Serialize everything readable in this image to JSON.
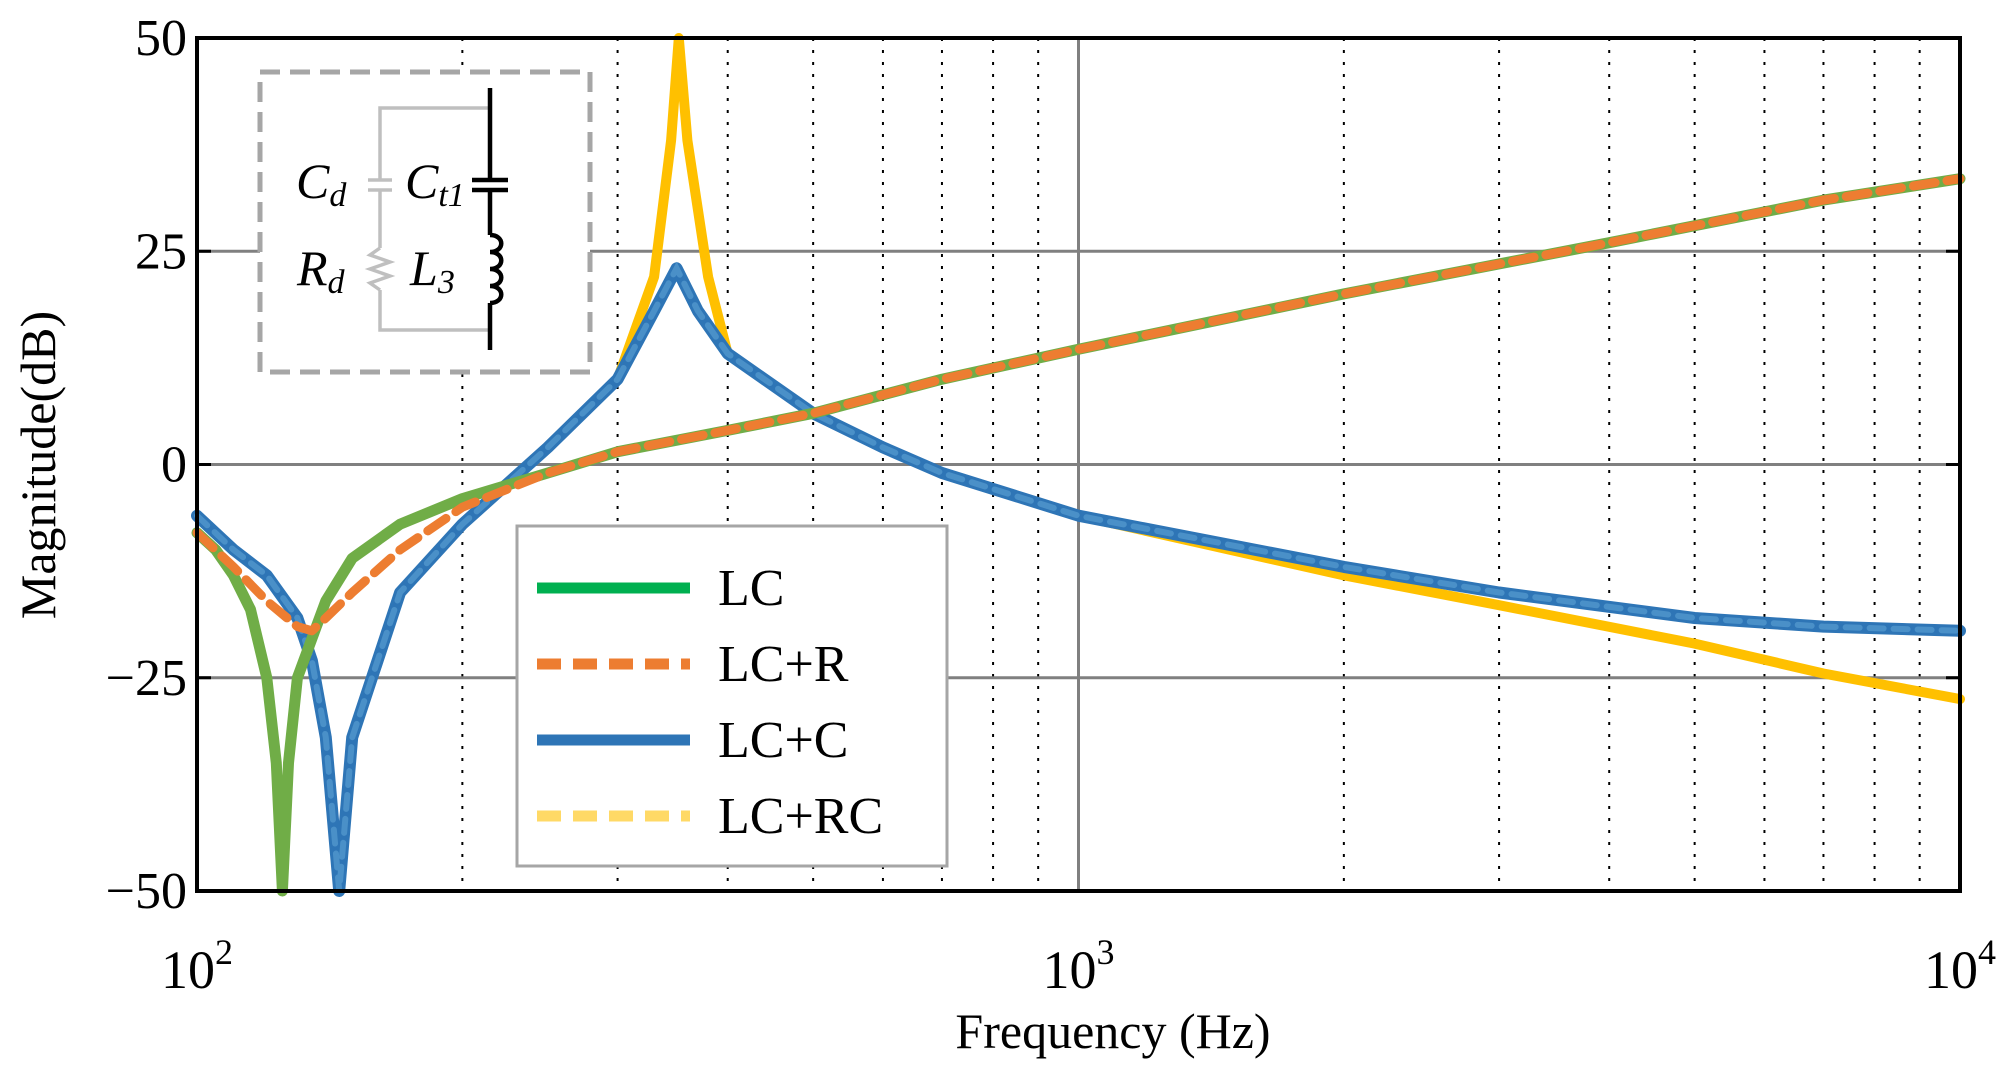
{
  "chart_data": {
    "type": "line",
    "title": "",
    "xlabel": "Frequency  (Hz)",
    "ylabel": "Magnitude(dB)",
    "xscale": "log",
    "xlim": [
      100,
      10000
    ],
    "ylim": [
      -50,
      50
    ],
    "xticks": [
      {
        "value": 100,
        "base": "10",
        "exp": "2"
      },
      {
        "value": 1000,
        "base": "10",
        "exp": "3"
      },
      {
        "value": 10000,
        "base": "10",
        "exp": "4"
      }
    ],
    "yticks": [
      {
        "value": 50,
        "label": "50"
      },
      {
        "value": 25,
        "label": "25"
      },
      {
        "value": 0,
        "label": "0"
      },
      {
        "value": -25,
        "label": "−25"
      },
      {
        "value": -50,
        "label": "−50"
      }
    ],
    "grid": true,
    "legend_position": "bottom-center",
    "series": [
      {
        "name": "LC",
        "color": "#70ad47",
        "style": "solid",
        "points": [
          [
            100,
            -8
          ],
          [
            105,
            -10
          ],
          [
            110,
            -13
          ],
          [
            115,
            -17
          ],
          [
            120,
            -25
          ],
          [
            123,
            -35
          ],
          [
            125,
            -50
          ],
          [
            127,
            -35
          ],
          [
            130,
            -25
          ],
          [
            140,
            -16
          ],
          [
            150,
            -11
          ],
          [
            170,
            -7
          ],
          [
            200,
            -4
          ],
          [
            250,
            -1
          ],
          [
            300,
            1.5
          ],
          [
            400,
            4
          ],
          [
            500,
            6
          ],
          [
            700,
            10
          ],
          [
            1000,
            13.5
          ],
          [
            2000,
            20
          ],
          [
            4000,
            26
          ],
          [
            7000,
            31
          ],
          [
            10000,
            33.5
          ]
        ]
      },
      {
        "name": "LC+R",
        "color": "#ed7d31",
        "style": "dashed",
        "points": [
          [
            100,
            -8
          ],
          [
            110,
            -12
          ],
          [
            120,
            -16
          ],
          [
            130,
            -19
          ],
          [
            135,
            -19.5
          ],
          [
            140,
            -18
          ],
          [
            150,
            -15
          ],
          [
            170,
            -10
          ],
          [
            200,
            -5
          ],
          [
            250,
            -1
          ],
          [
            300,
            1.5
          ],
          [
            400,
            4
          ],
          [
            500,
            6
          ],
          [
            700,
            10
          ],
          [
            1000,
            13.5
          ],
          [
            2000,
            20
          ],
          [
            4000,
            26
          ],
          [
            7000,
            31
          ],
          [
            10000,
            33.5
          ]
        ]
      },
      {
        "name": "LC+C",
        "color": "#2e75b6",
        "style": "solid",
        "points": [
          [
            100,
            -6
          ],
          [
            110,
            -10
          ],
          [
            120,
            -13
          ],
          [
            130,
            -18
          ],
          [
            135,
            -23
          ],
          [
            140,
            -32
          ],
          [
            145,
            -50
          ],
          [
            150,
            -32
          ],
          [
            170,
            -15
          ],
          [
            200,
            -7
          ],
          [
            250,
            2
          ],
          [
            300,
            10
          ],
          [
            330,
            18
          ],
          [
            350,
            23
          ],
          [
            370,
            18
          ],
          [
            400,
            13
          ],
          [
            500,
            6
          ],
          [
            600,
            2
          ],
          [
            700,
            -1
          ],
          [
            1000,
            -6
          ],
          [
            2000,
            -12
          ],
          [
            3000,
            -15
          ],
          [
            5000,
            -18
          ],
          [
            7000,
            -19
          ],
          [
            10000,
            -19.5
          ]
        ]
      },
      {
        "name": "LC+RC",
        "color": "#ffc000",
        "style": "solid",
        "points": [
          [
            100,
            -6
          ],
          [
            110,
            -10
          ],
          [
            120,
            -13
          ],
          [
            130,
            -18
          ],
          [
            135,
            -23
          ],
          [
            140,
            -32
          ],
          [
            145,
            -50
          ],
          [
            150,
            -32
          ],
          [
            170,
            -15
          ],
          [
            200,
            -7
          ],
          [
            250,
            2
          ],
          [
            300,
            10
          ],
          [
            330,
            22
          ],
          [
            345,
            38
          ],
          [
            352,
            50
          ],
          [
            360,
            38
          ],
          [
            380,
            22
          ],
          [
            400,
            13
          ],
          [
            500,
            6
          ],
          [
            600,
            2
          ],
          [
            700,
            -1
          ],
          [
            1000,
            -6
          ],
          [
            2000,
            -13
          ],
          [
            3000,
            -16.5
          ],
          [
            5000,
            -21
          ],
          [
            7000,
            -24.5
          ],
          [
            10000,
            -27.5
          ]
        ]
      }
    ],
    "legend_entries": [
      {
        "label": "LC",
        "color": "#00b050",
        "style": "solid"
      },
      {
        "label": "LC+R",
        "color": "#ed7d31",
        "style": "dashed"
      },
      {
        "label": "LC+C",
        "color": "#2e75b6",
        "style": "solid"
      },
      {
        "label": "LC+RC",
        "color": "#ffd966",
        "style": "dashed"
      }
    ],
    "inset": {
      "labels": {
        "cd": "C",
        "cd_sub": "d",
        "ct": "C",
        "ct_sub": "t1",
        "rd": "R",
        "rd_sub": "d",
        "l3": "L",
        "l3_sub": "3"
      }
    }
  }
}
